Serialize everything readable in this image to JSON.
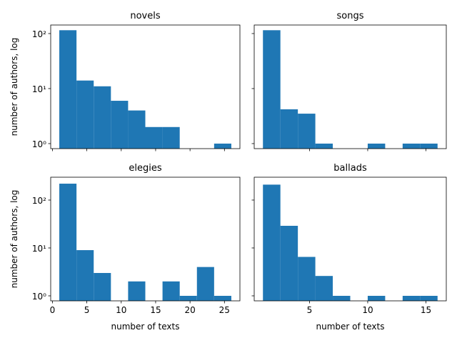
{
  "chart_data": [
    {
      "type": "histogram",
      "title": "novels",
      "ylabel": "number of authors, log",
      "bins": [
        1,
        3.5,
        6,
        8.5,
        11,
        13.5,
        16,
        18.5,
        21,
        23.5,
        26
      ],
      "values": [
        115,
        14,
        11,
        6,
        4,
        2,
        2,
        0,
        0,
        1
      ],
      "color": "#1f77b4",
      "xlim": [
        -0.25,
        27.25
      ],
      "ylim": [
        0.81,
        143
      ],
      "log_scale": true,
      "yticks": [
        {
          "value": 1,
          "label": "10⁰"
        },
        {
          "value": 10,
          "label": "10¹"
        },
        {
          "value": 100,
          "label": "10²"
        }
      ]
    },
    {
      "type": "histogram",
      "title": "songs",
      "bins": [
        1,
        2.5,
        4,
        5.5,
        7,
        8.5,
        10,
        11.5,
        13,
        14.5,
        16
      ],
      "values": [
        115,
        4.2,
        3.5,
        1,
        0,
        0,
        1,
        0,
        1,
        1
      ],
      "color": "#1f77b4",
      "xlim": [
        0.25,
        16.75
      ],
      "ylim": [
        0.81,
        143
      ],
      "log_scale": true
    },
    {
      "type": "histogram",
      "title": "elegies",
      "ylabel": "number of authors, log",
      "xlabel": "number of texts",
      "bins": [
        1,
        3.5,
        6,
        8.5,
        11,
        13.5,
        16,
        18.5,
        21,
        23.5,
        26
      ],
      "values": [
        220,
        9,
        3,
        0,
        2,
        0,
        2,
        1,
        4,
        1
      ],
      "color": "#1f77b4",
      "xlim": [
        -0.25,
        27.25
      ],
      "xticks": [
        0,
        5,
        10,
        15,
        20,
        25
      ],
      "ylim": [
        0.786,
        300
      ],
      "log_scale": true,
      "yticks": [
        {
          "value": 1,
          "label": "10⁰"
        },
        {
          "value": 10,
          "label": "10¹"
        },
        {
          "value": 100,
          "label": "10²"
        }
      ]
    },
    {
      "type": "histogram",
      "title": "ballads",
      "xlabel": "number of texts",
      "bins": [
        1,
        2.5,
        4,
        5.5,
        7,
        8.5,
        10,
        11.5,
        13,
        14.5,
        16
      ],
      "values": [
        210,
        29,
        6.5,
        2.6,
        1,
        0,
        1,
        0,
        1,
        1
      ],
      "color": "#1f77b4",
      "xlim": [
        0.25,
        16.75
      ],
      "xticks": [
        5,
        10,
        15
      ],
      "ylim": [
        0.786,
        300
      ],
      "log_scale": true
    }
  ]
}
